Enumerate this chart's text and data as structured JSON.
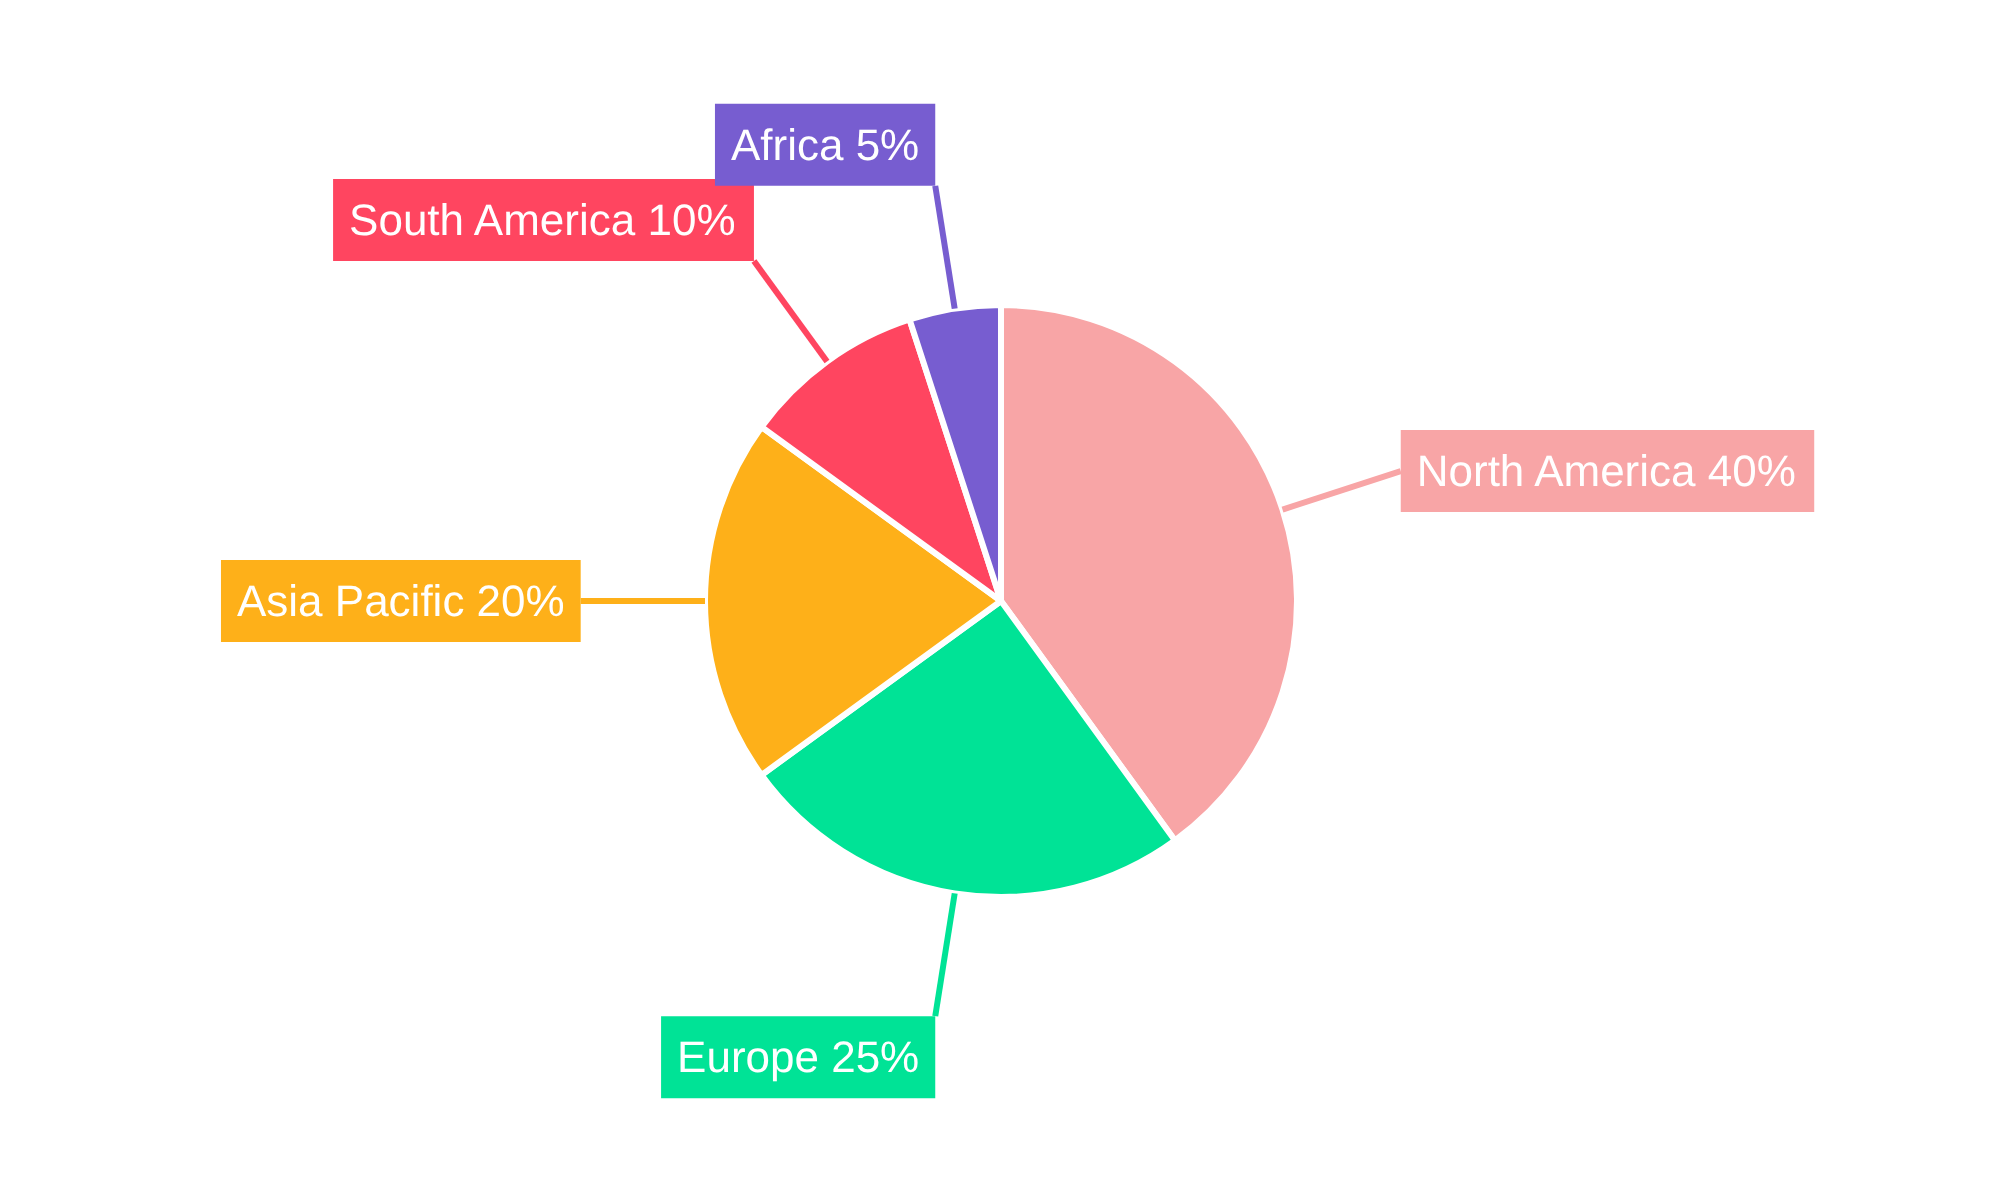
{
  "chart_data": {
    "type": "pie",
    "categories": [
      "North America",
      "Europe",
      "Asia Pacific",
      "South America",
      "Africa"
    ],
    "values": [
      40,
      25,
      20,
      10,
      5
    ],
    "colors": [
      "#f8a5a6",
      "#00e396",
      "#feb019",
      "#ff4560",
      "#775dd0"
    ],
    "value_labels": [
      "40%",
      "25%",
      "20%",
      "10%",
      "5%"
    ]
  }
}
